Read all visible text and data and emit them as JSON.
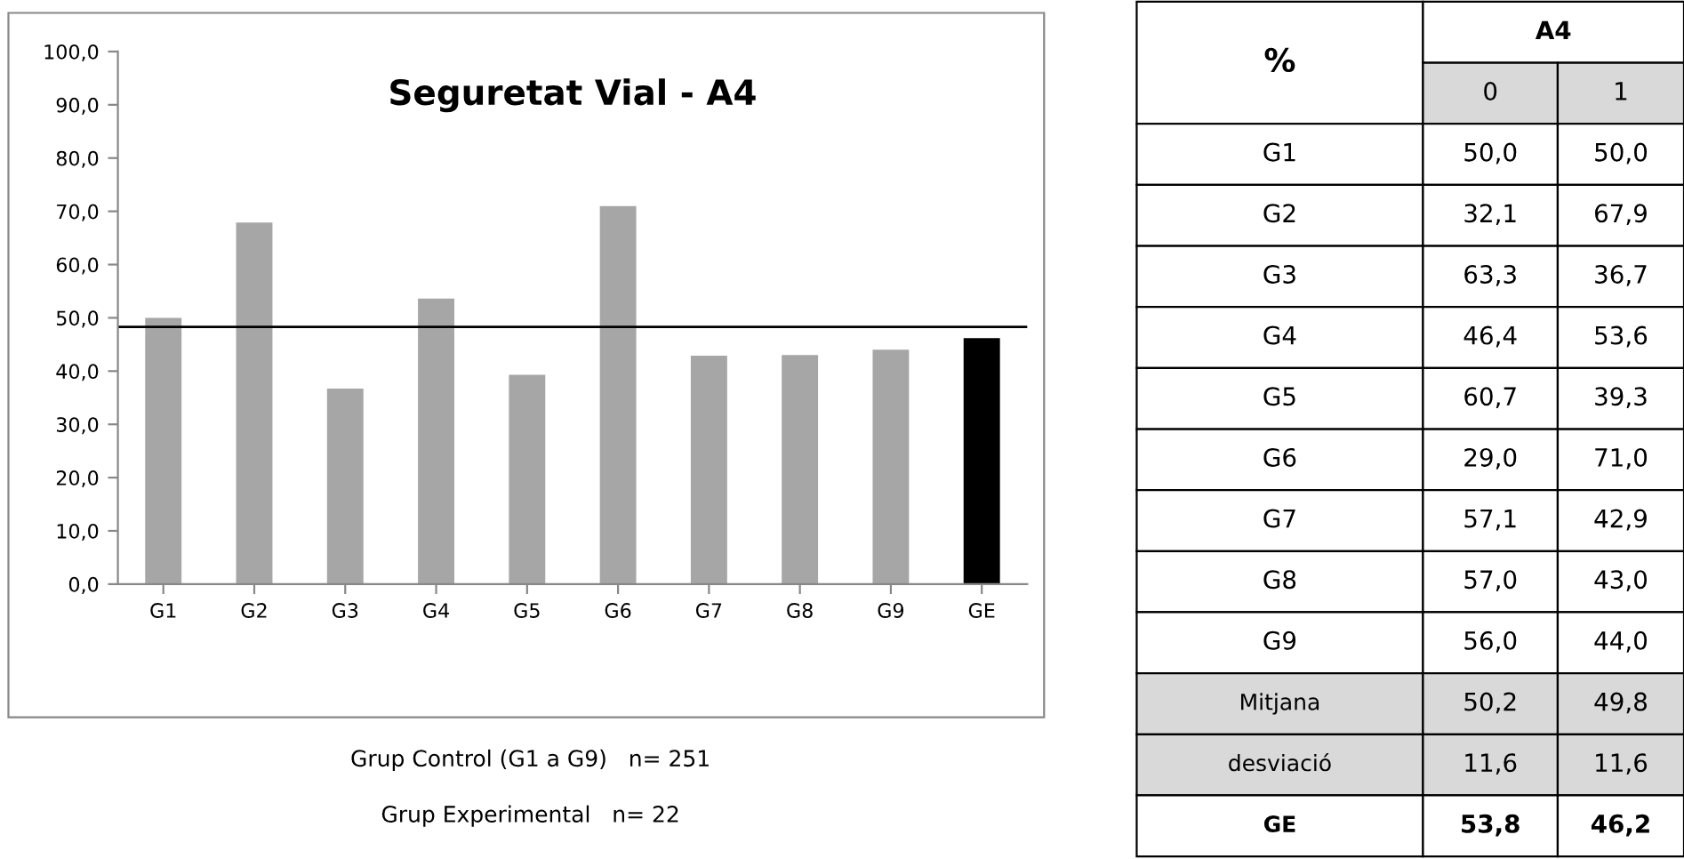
{
  "chart_data": [
    {
      "type": "bar",
      "title": "Seguretat Vial - A4",
      "categories": [
        "G1",
        "G2",
        "G3",
        "G4",
        "G5",
        "G6",
        "G7",
        "G8",
        "G9",
        "GE"
      ],
      "values": [
        50.0,
        67.9,
        36.7,
        53.6,
        39.3,
        71.0,
        42.9,
        43.0,
        44.0,
        46.2
      ],
      "colors": [
        "#a6a6a6",
        "#a6a6a6",
        "#a6a6a6",
        "#a6a6a6",
        "#a6a6a6",
        "#a6a6a6",
        "#a6a6a6",
        "#a6a6a6",
        "#a6a6a6",
        "#000000"
      ],
      "ylim": [
        0,
        100
      ],
      "yticks": [
        {
          "value": 0,
          "label": "0,0"
        },
        {
          "value": 10,
          "label": "10,0"
        },
        {
          "value": 20,
          "label": "20,0"
        },
        {
          "value": 30,
          "label": "30,0"
        },
        {
          "value": 40,
          "label": "40,0"
        },
        {
          "value": 50,
          "label": "50,0"
        },
        {
          "value": 60,
          "label": "60,0"
        },
        {
          "value": 70,
          "label": "70,0"
        },
        {
          "value": 80,
          "label": "80,0"
        },
        {
          "value": 90,
          "label": "90,0"
        },
        {
          "value": 100,
          "label": "100,0"
        }
      ],
      "ref_lines": [
        {
          "axis": "y",
          "value": 48.3,
          "color": "#000000"
        }
      ],
      "grid": false,
      "legend": false,
      "annotations": [
        "Grup Control (G1 a G9)   n= 251",
        "Grup Experimental   n= 22"
      ]
    },
    {
      "type": "other",
      "annotations": [
        "%",
        "A4",
        "0",
        "1",
        "G1",
        "50,0",
        "50,0",
        "G2",
        "32,1",
        "67,9",
        "G3",
        "63,3",
        "36,7",
        "G4",
        "46,4",
        "53,6",
        "G5",
        "60,7",
        "39,3",
        "G6",
        "29,0",
        "71,0",
        "G7",
        "57,1",
        "42,9",
        "G8",
        "57,0",
        "43,0",
        "G9",
        "56,0",
        "44,0",
        "Mitjana",
        "50,2",
        "49,8",
        "desviació",
        "11,6",
        "11,6",
        "GE",
        "53,8",
        "46,2"
      ]
    }
  ]
}
